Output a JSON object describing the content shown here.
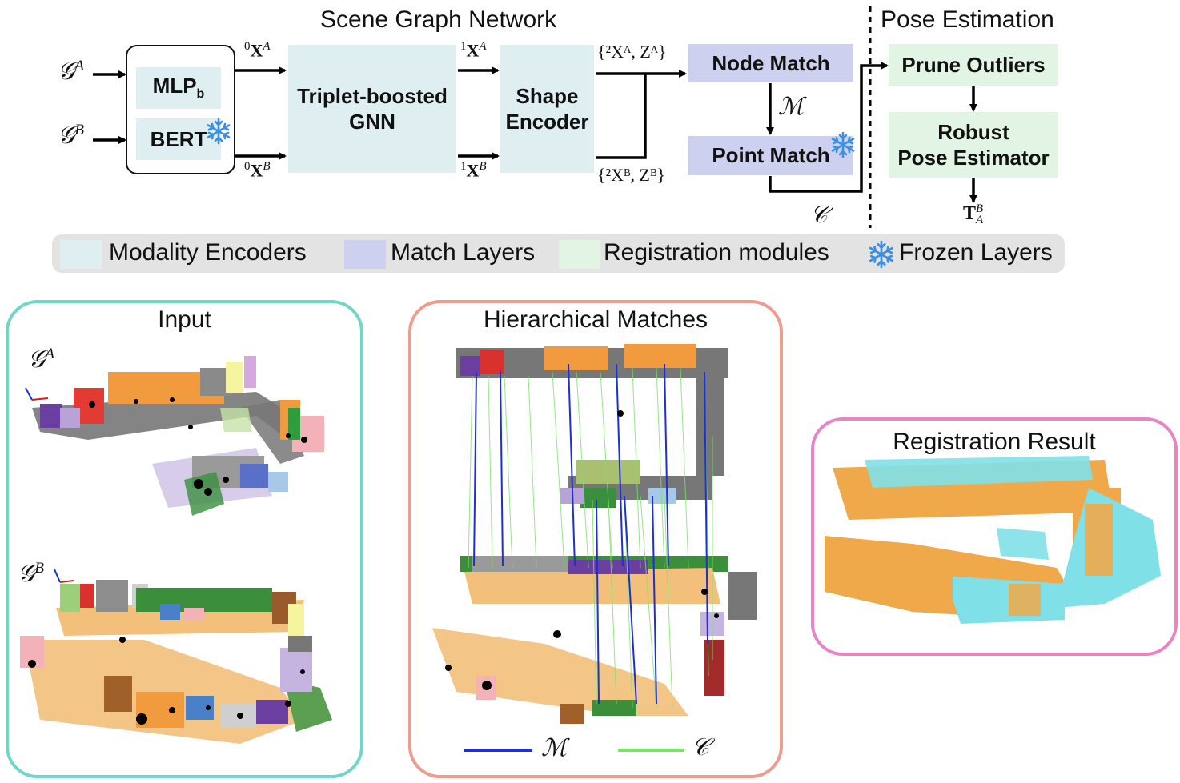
{
  "section_titles": {
    "network": "Scene Graph Network",
    "pose": "Pose Estimation"
  },
  "inputs": {
    "graph_a": "𝒢",
    "graph_a_sup": "A",
    "graph_b": "𝒢",
    "graph_b_sup": "B"
  },
  "encoder_box": {
    "mlp": "MLP",
    "mlp_sub": "b",
    "bert": "BERT"
  },
  "modules": {
    "gnn_line1": "Triplet-boosted",
    "gnn_line2": "GNN",
    "shape_line1": "Shape",
    "shape_line2": "Encoder",
    "node_match": "Node Match",
    "point_match": "Point Match",
    "prune": "Prune Outliers",
    "robust_line1": "Robust",
    "robust_line2": "Pose Estimator"
  },
  "edge_labels": {
    "x0a": {
      "pre": "0",
      "var": "X",
      "sup": "A"
    },
    "x0b": {
      "pre": "0",
      "var": "X",
      "sup": "B"
    },
    "x1a": {
      "pre": "1",
      "var": "X",
      "sup": "A"
    },
    "x1b": {
      "pre": "1",
      "var": "X",
      "sup": "B"
    },
    "x2a": "{²Xᴬ, Zᴬ}",
    "x2b": "{²Xᴮ, Zᴮ}",
    "m": "ℳ",
    "c": "𝒞",
    "t_var": "T",
    "t_sup": "B",
    "t_sub": "A"
  },
  "legend": [
    {
      "label": "Modality Encoders",
      "color": "#dfeef1"
    },
    {
      "label": "Match Layers",
      "color": "#cdd0ee"
    },
    {
      "label": "Registration modules",
      "color": "#e2f4e3"
    },
    {
      "label": "Frozen Layers",
      "icon": "snowflake-icon",
      "color": "#3a8fe0"
    }
  ],
  "panels": {
    "input": {
      "title": "Input",
      "border_color": "#6fd6c8",
      "label_a": "𝒢",
      "label_a_sup": "A",
      "label_b": "𝒢",
      "label_b_sup": "B"
    },
    "matches": {
      "title": "Hierarchical Matches",
      "border_color": "#ef9b8d",
      "legend_m": "ℳ",
      "legend_c": "𝒞",
      "m_color": "#1f2fd0",
      "c_color": "#7be26a"
    },
    "registration": {
      "title": "Registration Result",
      "border_color": "#e884c3",
      "color_a": "#f0a94a",
      "color_b": "#7fe0e8"
    }
  }
}
